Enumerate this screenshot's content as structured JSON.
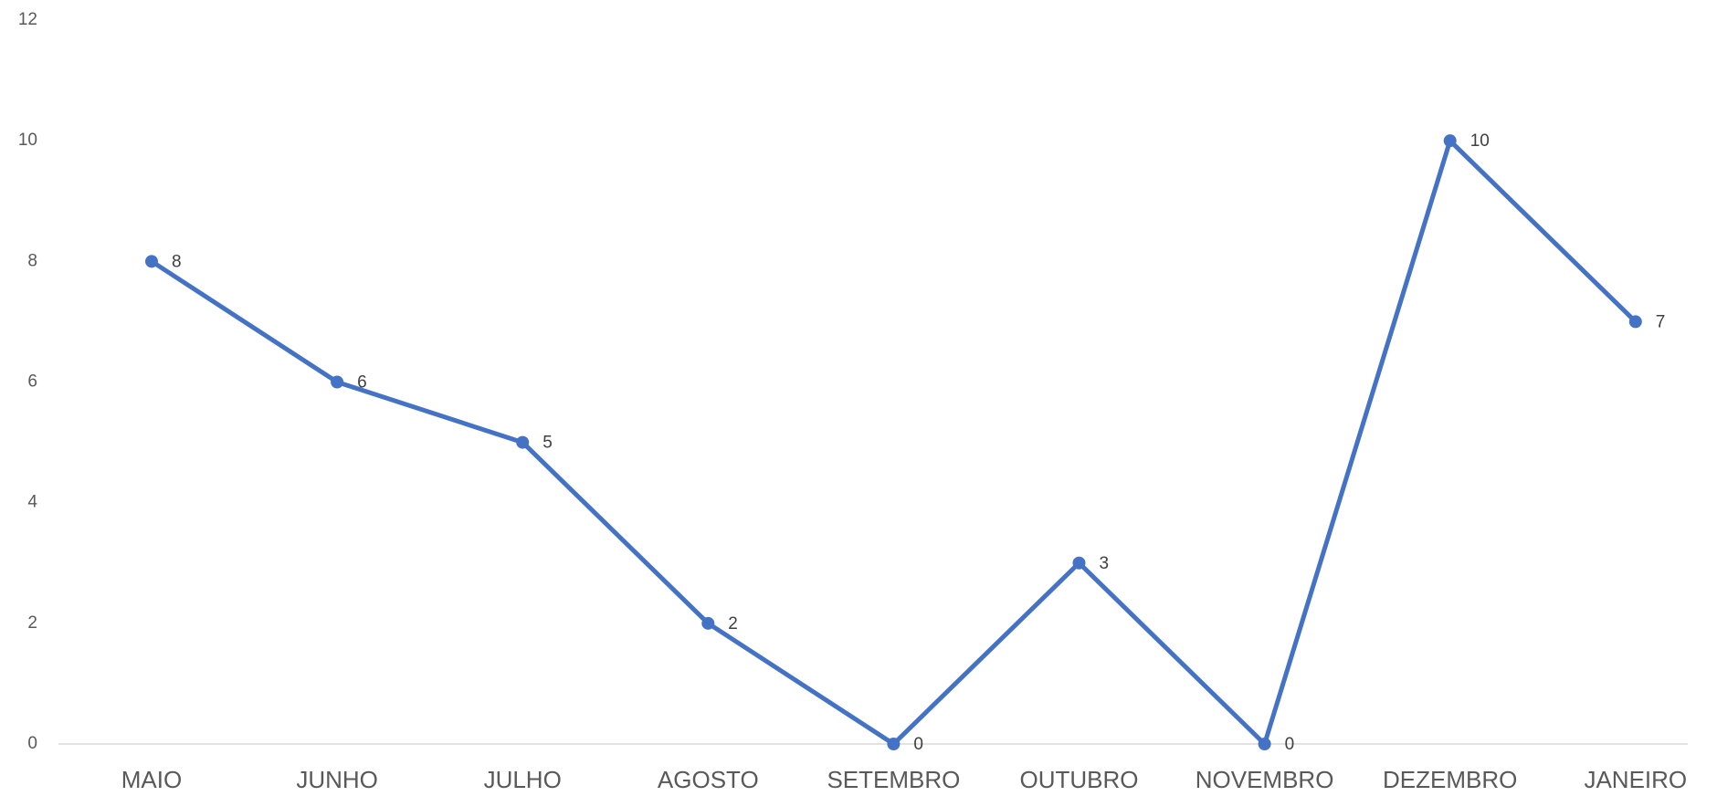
{
  "chart_data": {
    "type": "line",
    "categories": [
      "MAIO",
      "JUNHO",
      "JULHO",
      "AGOSTO",
      "SETEMBRO",
      "OUTUBRO",
      "NOVEMBRO",
      "DEZEMBRO",
      "JANEIRO"
    ],
    "series": [
      {
        "color": "#4472c4",
        "values": [
          8,
          6,
          5,
          2,
          0,
          3,
          0,
          10,
          7
        ]
      }
    ],
    "ylim": [
      0,
      12
    ],
    "yticks": [
      0,
      2,
      4,
      6,
      8,
      10,
      12
    ],
    "grid": false
  }
}
